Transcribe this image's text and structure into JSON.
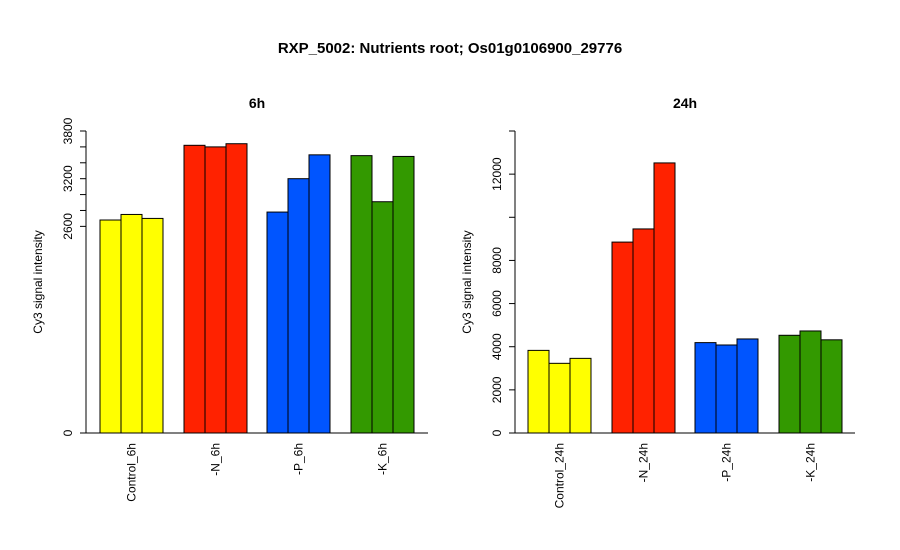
{
  "figure": {
    "title": "RXP_5002: Nutrients root; Os01g0106900_29776"
  },
  "chart_data": [
    {
      "type": "bar",
      "title": "6h",
      "ylabel": "Cy3 signal intensity",
      "xlabel": "",
      "ylim": [
        0,
        3800
      ],
      "yticks": [
        0,
        2600,
        3200,
        3800
      ],
      "grid": false,
      "categories": [
        "Control_6h",
        "-N_6h",
        "-P_6h",
        "-K_6h"
      ],
      "colors": [
        "#ffff00",
        "#ff2200",
        "#0055ff",
        "#339900"
      ],
      "replicates": [
        [
          2680,
          2750,
          2700
        ],
        [
          3620,
          3600,
          3640
        ],
        [
          2780,
          3200,
          3500
        ],
        [
          3490,
          2910,
          3480
        ]
      ]
    },
    {
      "type": "bar",
      "title": "24h",
      "ylabel": "Cy3 signal intensity",
      "xlabel": "",
      "ylim": [
        0,
        14000
      ],
      "yticks": [
        0,
        2000,
        4000,
        6000,
        8000,
        12000
      ],
      "grid": false,
      "categories": [
        "Control_24h",
        "-N_24h",
        "-P_24h",
        "-K_24h"
      ],
      "colors": [
        "#ffff00",
        "#ff2200",
        "#0055ff",
        "#339900"
      ],
      "replicates": [
        [
          3830,
          3230,
          3460
        ],
        [
          8850,
          9460,
          12520
        ],
        [
          4190,
          4080,
          4360
        ],
        [
          4530,
          4730,
          4320
        ]
      ]
    }
  ]
}
